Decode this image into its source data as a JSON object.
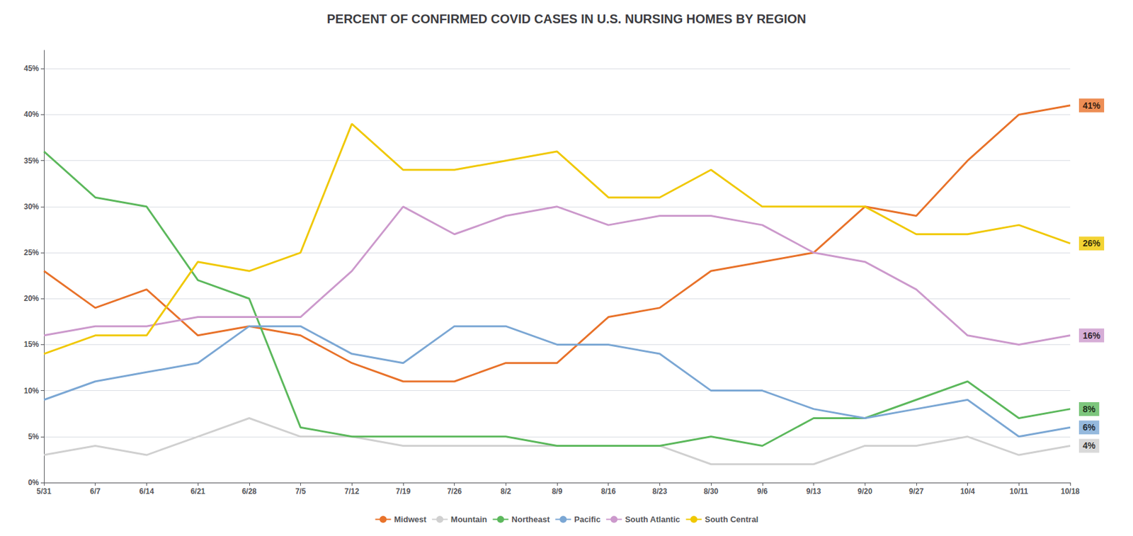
{
  "chart_data": {
    "type": "line",
    "title": "PERCENT OF CONFIRMED COVID CASES IN U.S. NURSING HOMES BY REGION",
    "categories": [
      "5/31",
      "6/7",
      "6/14",
      "6/21",
      "6/28",
      "7/5",
      "7/12",
      "7/19",
      "7/26",
      "8/2",
      "8/9",
      "8/16",
      "8/23",
      "8/30",
      "9/6",
      "9/13",
      "9/20",
      "9/27",
      "10/4",
      "10/11",
      "10/18"
    ],
    "series": [
      {
        "name": "Midwest",
        "color": "#e8722a",
        "values": [
          23,
          19,
          21,
          16,
          17,
          16,
          13,
          11,
          11,
          13,
          13,
          18,
          19,
          23,
          24,
          25,
          30,
          29,
          35,
          40,
          41
        ]
      },
      {
        "name": "Mountain",
        "color": "#d0d0d0",
        "values": [
          3,
          4,
          3,
          5,
          7,
          5,
          5,
          4,
          4,
          4,
          4,
          4,
          4,
          2,
          2,
          2,
          4,
          4,
          5,
          3,
          4
        ]
      },
      {
        "name": "Northeast",
        "color": "#5cb85c",
        "values": [
          36,
          31,
          30,
          22,
          20,
          6,
          5,
          5,
          5,
          5,
          4,
          4,
          4,
          5,
          4,
          7,
          7,
          9,
          11,
          7,
          8
        ]
      },
      {
        "name": "Pacific",
        "color": "#7ba7d4",
        "values": [
          9,
          11,
          12,
          13,
          17,
          17,
          14,
          13,
          17,
          17,
          15,
          15,
          14,
          10,
          10,
          8,
          7,
          8,
          9,
          5,
          6
        ]
      },
      {
        "name": "South Atlantic",
        "color": "#cc99cc",
        "values": [
          16,
          17,
          17,
          18,
          18,
          18,
          23,
          30,
          27,
          29,
          30,
          28,
          29,
          29,
          28,
          25,
          24,
          21,
          16,
          15,
          16
        ]
      },
      {
        "name": "South Central",
        "color": "#f0c800",
        "values": [
          14,
          16,
          16,
          24,
          23,
          25,
          39,
          34,
          34,
          35,
          36,
          31,
          31,
          34,
          30,
          30,
          30,
          27,
          27,
          28,
          26
        ]
      }
    ],
    "annotations": [
      {
        "text": "41%",
        "x": "10/18",
        "y": 41,
        "color": "#000000",
        "background": "#e8722a"
      },
      {
        "text": "4%",
        "x": "10/18",
        "y": 4,
        "color": "#000000",
        "background": "#d0d0d0"
      },
      {
        "text": "8%",
        "x": "10/18",
        "y": 8,
        "color": "#000000",
        "background": "#5cb85c"
      },
      {
        "text": "6%",
        "x": "10/18",
        "y": 6,
        "color": "#000000",
        "background": "#7ba7d4"
      },
      {
        "text": "16%",
        "x": "10/18",
        "y": 16,
        "color": "#000000",
        "background": "#cc99cc"
      },
      {
        "text": "26%",
        "x": "10/18",
        "y": 26,
        "color": "#000000",
        "background": "#f0c800"
      }
    ],
    "ylim": [
      0,
      47
    ],
    "yticks": [
      {
        "value": 0,
        "label": "0%"
      },
      {
        "value": 5,
        "label": "5%"
      },
      {
        "value": 10,
        "label": "10%"
      },
      {
        "value": 15,
        "label": "15%"
      },
      {
        "value": 20,
        "label": "20%"
      },
      {
        "value": 25,
        "label": "25%"
      },
      {
        "value": 30,
        "label": "30%"
      },
      {
        "value": 35,
        "label": "35%"
      },
      {
        "value": 40,
        "label": "40%"
      },
      {
        "value": 45,
        "label": "45%"
      }
    ],
    "grid": true,
    "legend": "bottom"
  }
}
